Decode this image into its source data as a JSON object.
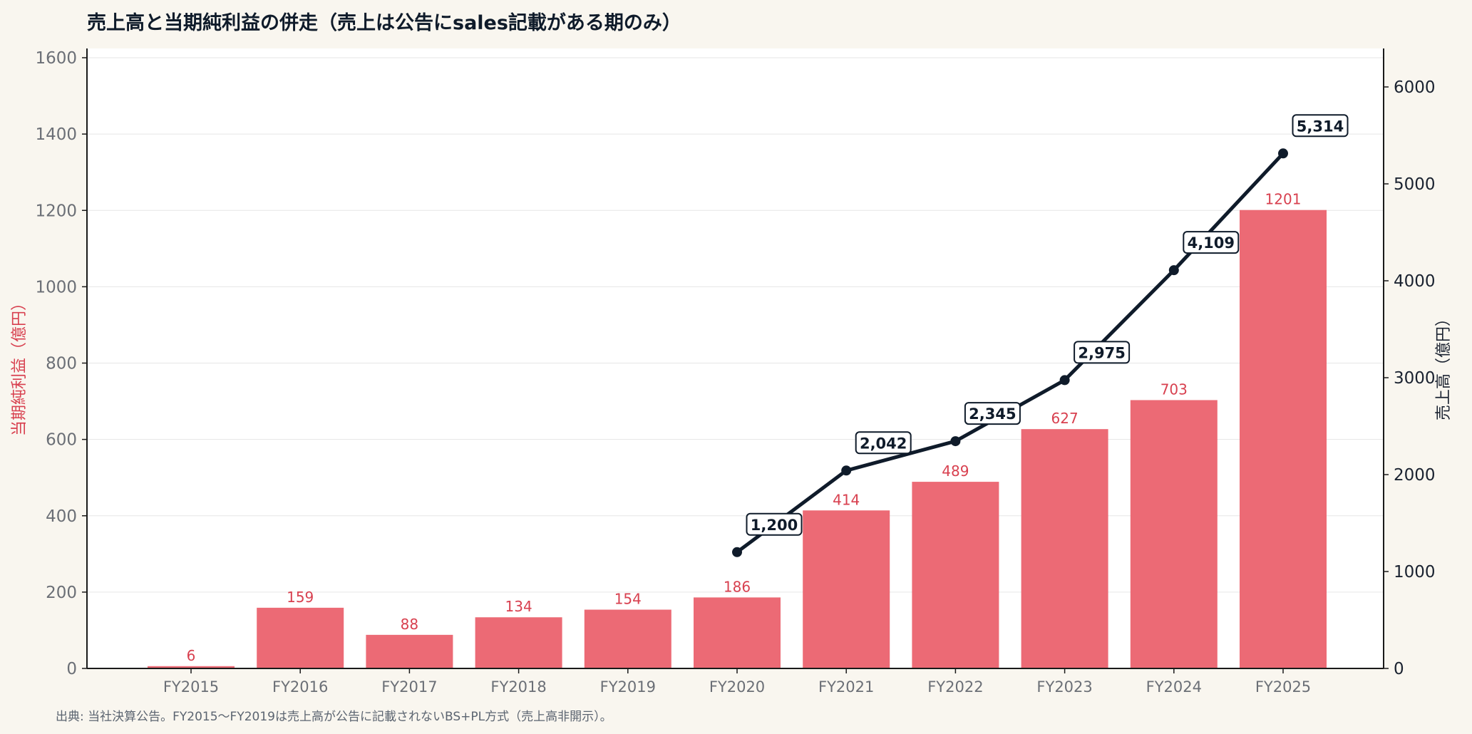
{
  "title": "売上高と当期純利益の併走（売上は公告にsales記載がある期のみ）",
  "source_note": "出典: 当社決算公告。FY2015〜FY2019は売上高が公告に記載されないBS+PL方式（売上高非開示）。",
  "chart_data": {
    "type": "bar+line",
    "categories": [
      "FY2015",
      "FY2016",
      "FY2017",
      "FY2018",
      "FY2019",
      "FY2020",
      "FY2021",
      "FY2022",
      "FY2023",
      "FY2024",
      "FY2025"
    ],
    "series": [
      {
        "name": "当期純利益",
        "type": "bar",
        "axis": "left",
        "values": [
          6,
          159,
          88,
          134,
          154,
          186,
          414,
          489,
          627,
          703,
          1201
        ],
        "color": "#ec6a75"
      },
      {
        "name": "売上高",
        "type": "line",
        "axis": "right",
        "values": [
          null,
          null,
          null,
          null,
          null,
          1200,
          2042,
          2345,
          2975,
          4109,
          5314
        ],
        "labels": [
          "",
          "",
          "",
          "",
          "",
          "1,200",
          "2,042",
          "2,345",
          "2,975",
          "4,109",
          "5,314"
        ],
        "color": "#0f1b2a"
      }
    ],
    "ylabel_left": "当期純利益（億円）",
    "ylabel_right": "売上高（億円）",
    "ylim_left": [
      0,
      1600
    ],
    "yticks_left": [
      0,
      200,
      400,
      600,
      800,
      1000,
      1200,
      1400,
      1600
    ],
    "ylim_right": [
      0,
      6350
    ],
    "yticks_right": [
      0,
      1000,
      2000,
      3000,
      4000,
      5000,
      6000
    ],
    "grid": true,
    "colors": {
      "bar": "#ec6a75",
      "bar_label": "#d8404f",
      "line": "#0f1b2a",
      "plot_background": "#ffffff",
      "page_background": "#f9f6ef",
      "grid": "#e6e6e6"
    }
  }
}
